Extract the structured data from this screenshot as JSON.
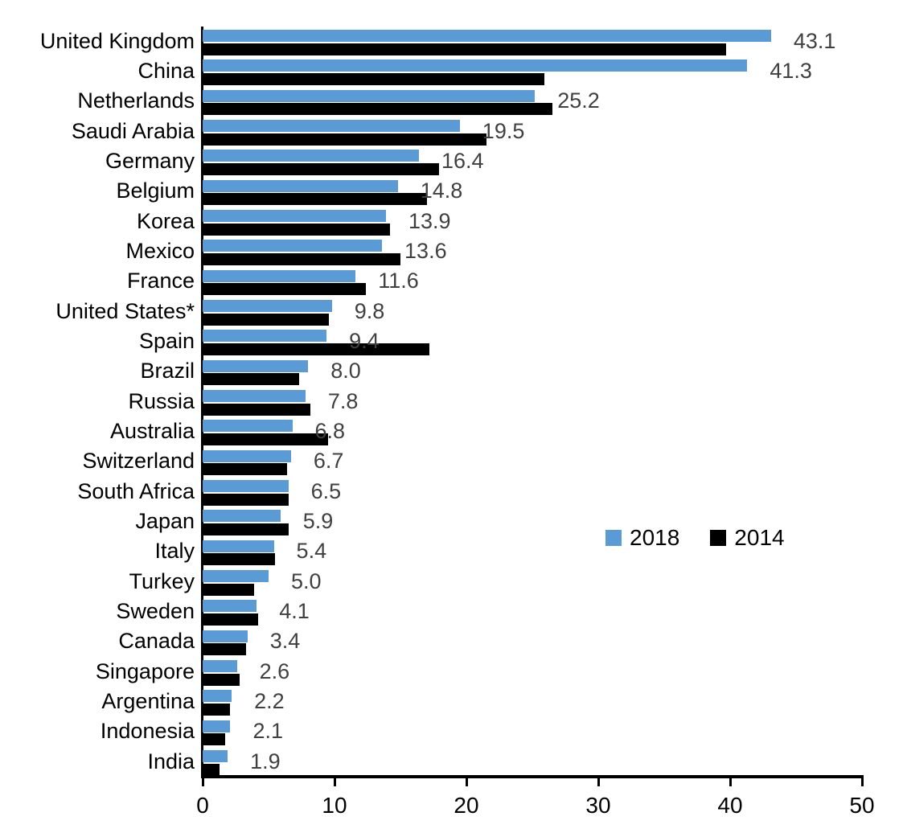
{
  "chart_data": {
    "type": "bar",
    "orientation": "horizontal",
    "title": "",
    "xlabel": "",
    "ylabel": "",
    "xlim": [
      0,
      50
    ],
    "xticks": [
      0,
      10,
      20,
      30,
      40,
      50
    ],
    "grid": false,
    "legend_position": "center-right",
    "categories": [
      "United Kingdom",
      "China",
      "Netherlands",
      "Saudi Arabia",
      "Germany",
      "Belgium",
      "Korea",
      "Mexico",
      "France",
      "United States*",
      "Spain",
      "Brazil",
      "Russia",
      "Australia",
      "Switzerland",
      "South Africa",
      "Japan",
      "Italy",
      "Turkey",
      "Sweden",
      "Canada",
      "Singapore",
      "Argentina",
      "Indonesia",
      "India"
    ],
    "series": [
      {
        "name": "2018",
        "color": "#5B9BD5",
        "values": [
          43.1,
          41.3,
          25.2,
          19.5,
          16.4,
          14.8,
          13.9,
          13.6,
          11.6,
          9.8,
          9.4,
          8.0,
          7.8,
          6.8,
          6.7,
          6.5,
          5.9,
          5.4,
          5.0,
          4.1,
          3.4,
          2.6,
          2.2,
          2.1,
          1.9
        ],
        "labels_shown": true
      },
      {
        "name": "2014",
        "color": "#000000",
        "values": [
          39.7,
          25.9,
          26.5,
          21.5,
          17.9,
          17.0,
          14.2,
          15.0,
          12.4,
          9.6,
          17.2,
          7.3,
          8.2,
          9.5,
          6.4,
          6.5,
          6.5,
          5.5,
          3.9,
          4.2,
          3.3,
          2.8,
          2.1,
          1.7,
          1.3
        ],
        "labels_shown": false
      }
    ],
    "value_label_color": "#404040",
    "axis_color": "#000000"
  }
}
